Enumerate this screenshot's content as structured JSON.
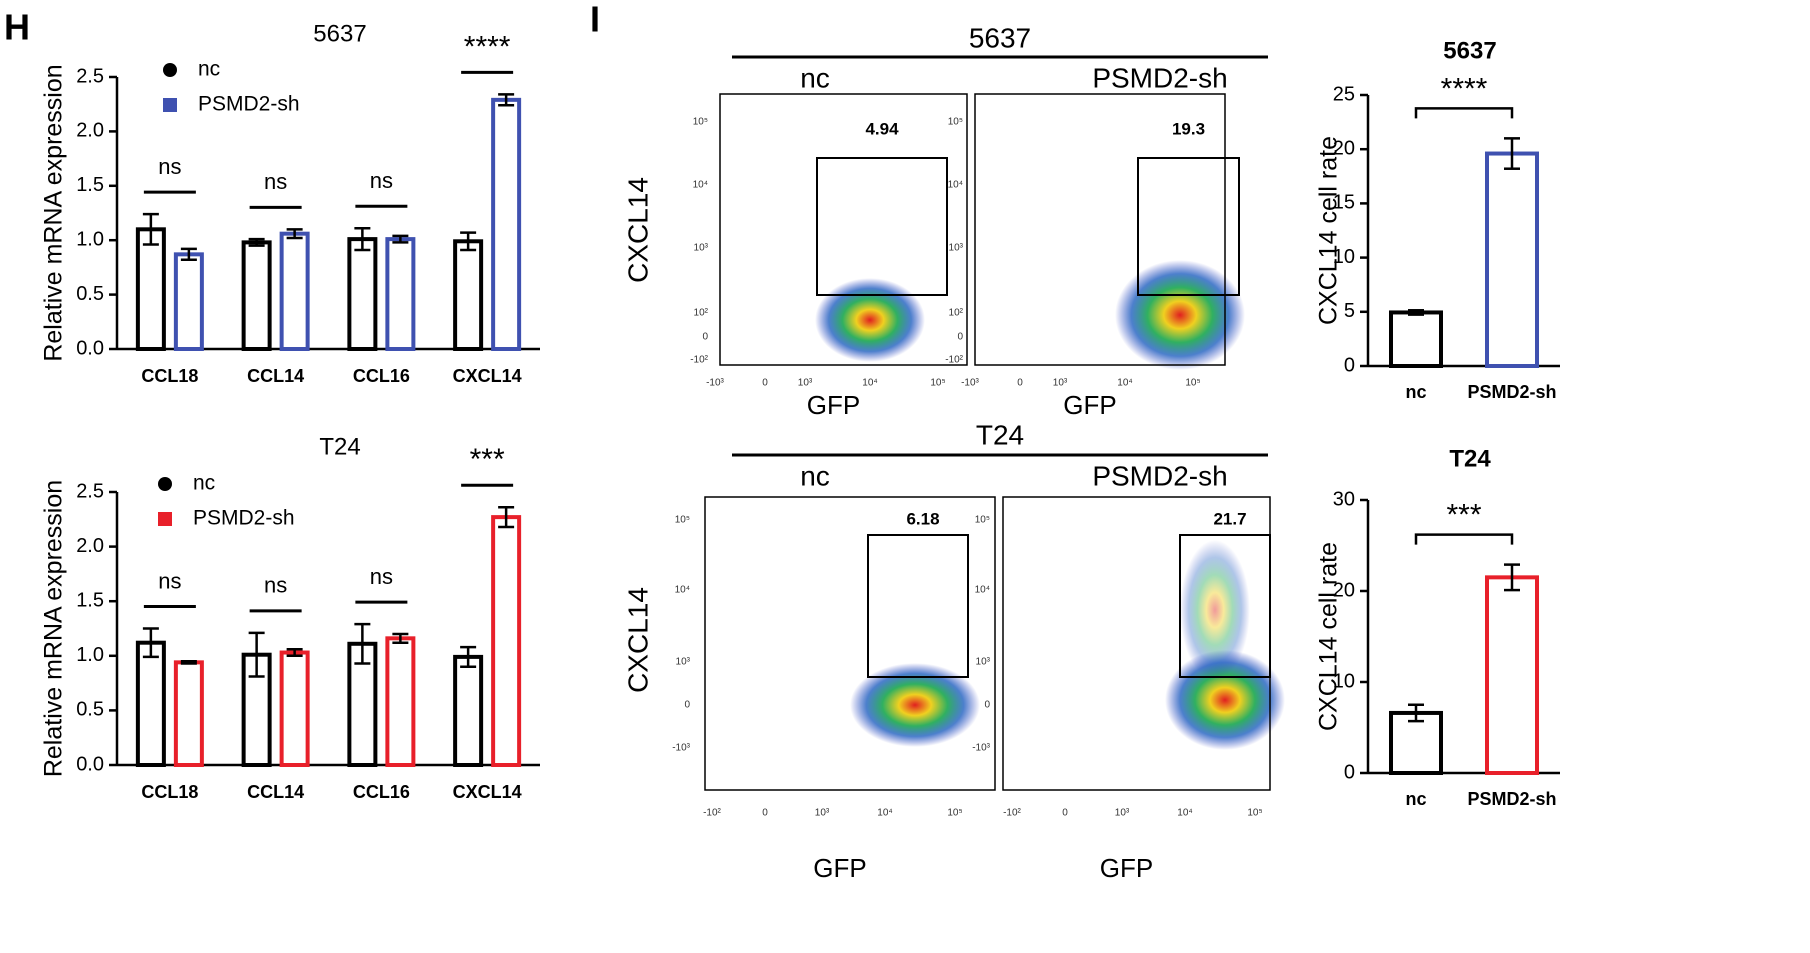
{
  "panel_labels": [
    "H",
    "I"
  ],
  "chart_data": [
    {
      "type": "grouped_bar",
      "title": "5637",
      "y_label": "Relative mRNA expression",
      "categories": [
        "CCL18",
        "CCL14",
        "CCL16",
        "CXCL14"
      ],
      "series": [
        {
          "name": "nc",
          "color": "#000000",
          "values": [
            1.1,
            0.98,
            1.01,
            0.99
          ],
          "errors": [
            0.14,
            0.03,
            0.1,
            0.08
          ]
        },
        {
          "name": "PSMD2-sh",
          "color": "#3f51b0",
          "values": [
            0.87,
            1.06,
            1.01,
            2.29
          ],
          "errors": [
            0.05,
            0.04,
            0.03,
            0.05
          ]
        }
      ],
      "annotations": [
        "ns",
        "ns",
        "ns",
        "****"
      ],
      "ylim": [
        0,
        2.5
      ],
      "yticks": [
        {
          "value": 0,
          "label": "0.0"
        },
        0.5,
        {
          "value": 1,
          "label": "1.0"
        },
        1.5,
        {
          "value": 2,
          "label": "2.0"
        },
        2.5
      ]
    },
    {
      "type": "grouped_bar",
      "title": "T24",
      "y_label": "Relative mRNA expression",
      "categories": [
        "CCL18",
        "CCL14",
        "CCL16",
        "CXCL14"
      ],
      "series": [
        {
          "name": "nc",
          "color": "#000000",
          "values": [
            1.12,
            1.01,
            1.11,
            0.99
          ],
          "errors": [
            0.13,
            0.2,
            0.18,
            0.09
          ]
        },
        {
          "name": "PSMD2-sh",
          "color": "#e8202a",
          "values": [
            0.94,
            1.03,
            1.16,
            2.27
          ],
          "errors": [
            0.01,
            0.03,
            0.04,
            0.09
          ]
        }
      ],
      "annotations": [
        "ns",
        "ns",
        "ns",
        "***"
      ],
      "ylim": [
        0,
        2.5
      ],
      "yticks": [
        {
          "value": 0,
          "label": "0.0"
        },
        0.5,
        {
          "value": 1,
          "label": "1.0"
        },
        1.5,
        {
          "value": 2,
          "label": "2.0"
        },
        2.5
      ]
    },
    {
      "type": "bar",
      "title": "5637",
      "y_label": "CXCL14 cell rate",
      "categories": [
        "nc",
        "PSMD2-sh"
      ],
      "values": [
        4.94,
        19.6
      ],
      "errors": [
        0.2,
        1.4
      ],
      "colors": [
        "#000000",
        "#3f51b0"
      ],
      "annotation": "****",
      "ylim": [
        0,
        25
      ],
      "yticks": [
        0,
        5,
        10,
        15,
        20,
        25
      ]
    },
    {
      "type": "bar",
      "title": "T24",
      "y_label": "CXCL14 cell rate",
      "categories": [
        "nc",
        "PSMD2-sh"
      ],
      "values": [
        6.6,
        21.5
      ],
      "errors": [
        0.9,
        1.4
      ],
      "colors": [
        "#000000",
        "#e8202a"
      ],
      "annotation": "***",
      "ylim": [
        0,
        30
      ],
      "yticks": [
        0,
        10,
        20,
        30
      ]
    }
  ],
  "flow": [
    {
      "title": "5637",
      "y_label": "CXCL14",
      "yticks": [
        "10⁵",
        "10⁴",
        "10³",
        "10²",
        "0",
        "-10²"
      ],
      "xticks": [
        "-10³",
        "0",
        "10³",
        "10⁴",
        "10⁵"
      ],
      "columns": [
        {
          "label": "nc",
          "gate": "4.94",
          "x_label": "GFP"
        },
        {
          "label": "PSMD2-sh",
          "gate": "19.3",
          "x_label": "GFP"
        }
      ]
    },
    {
      "title": "T24",
      "y_label": "CXCL14",
      "yticks": [
        "10⁵",
        "10⁴",
        "10³",
        "0",
        "-10³"
      ],
      "xticks": [
        "-10²",
        "0",
        "10³",
        "10⁴",
        "10⁵"
      ],
      "columns": [
        {
          "label": "nc",
          "gate": "6.18",
          "x_label": "GFP"
        },
        {
          "label": "PSMD2-sh",
          "gate": "21.7",
          "x_label": "GFP"
        }
      ]
    }
  ]
}
